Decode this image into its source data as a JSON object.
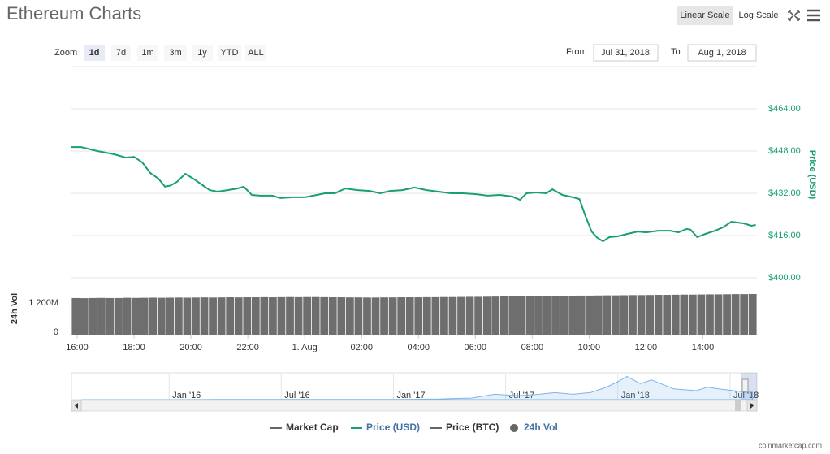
{
  "header": {
    "title": "Ethereum Charts",
    "scale_buttons": [
      "Linear Scale",
      "Log Scale"
    ]
  },
  "zoom": {
    "label": "Zoom",
    "buttons": [
      "1d",
      "7d",
      "1m",
      "3m",
      "1y",
      "YTD",
      "ALL"
    ]
  },
  "range": {
    "from_label": "From",
    "from": "Jul 31, 2018",
    "to_label": "To",
    "to": "Aug 1, 2018"
  },
  "chart_data": [
    {
      "type": "line",
      "ylabel": "Price (USD)",
      "x": [
        -0.2,
        0.14,
        0.71,
        1.29,
        1.71,
        2,
        2.29,
        2.57,
        2.86,
        3.09,
        3.29,
        3.51,
        3.8,
        4.09,
        4.37,
        4.66,
        4.94,
        5.29,
        5.63,
        5.86,
        6.14,
        6.43,
        6.86,
        7.14,
        7.57,
        8,
        8.43,
        8.71,
        9.06,
        9.43,
        9.86,
        10.29,
        10.66,
        11,
        11.43,
        11.86,
        12.29,
        12.71,
        13.14,
        13.57,
        14,
        14.43,
        14.86,
        15.29,
        15.57,
        15.8,
        16.14,
        16.49,
        16.71,
        17.06,
        17.43,
        17.66,
        17.86,
        18.09,
        18.29,
        18.49,
        18.71,
        19,
        19.34,
        19.71,
        20,
        20.43,
        20.86,
        21.14,
        21.43,
        21.57,
        21.8,
        22.09,
        22.43,
        22.71,
        23,
        23.43,
        23.71,
        23.86
      ],
      "series": [
        {
          "color": "#1a9e77",
          "values": [
            449.5,
            449.5,
            448,
            446.8,
            445.5,
            445.8,
            443.7,
            439.7,
            437.5,
            434.5,
            435,
            436.3,
            439.4,
            437.5,
            435.4,
            433.2,
            432.6,
            433.2,
            433.8,
            434.5,
            431.4,
            431.1,
            431.1,
            430.2,
            430.5,
            430.5,
            431.4,
            432,
            432,
            433.8,
            433.2,
            432.9,
            432,
            432.9,
            433.2,
            434.2,
            433.2,
            432.6,
            432,
            432,
            431.7,
            431.1,
            431.4,
            430.8,
            429.5,
            432,
            432.3,
            432,
            433.5,
            431.4,
            430.5,
            429.8,
            423.7,
            417.5,
            415.1,
            413.8,
            415.4,
            415.7,
            416.6,
            417.5,
            417.2,
            417.8,
            417.8,
            417.2,
            418.5,
            418.2,
            415.4,
            416.6,
            417.8,
            419.1,
            421.2,
            420.6,
            419.7,
            420
          ]
        }
      ],
      "xlim": [
        -0.2,
        23.9
      ],
      "xticks": [
        {
          "value": 0,
          "label": "16:00"
        },
        {
          "value": 2,
          "label": "18:00"
        },
        {
          "value": 4,
          "label": "20:00"
        },
        {
          "value": 6,
          "label": "22:00"
        },
        {
          "value": 8,
          "label": "1. Aug"
        },
        {
          "value": 10,
          "label": "02:00"
        },
        {
          "value": 12,
          "label": "04:00"
        },
        {
          "value": 14,
          "label": "06:00"
        },
        {
          "value": 16,
          "label": "08:00"
        },
        {
          "value": 18,
          "label": "10:00"
        },
        {
          "value": 20,
          "label": "12:00"
        },
        {
          "value": 22,
          "label": "14:00"
        }
      ],
      "ylim": [
        400,
        480
      ],
      "yticks": [
        {
          "value": 400,
          "label": "$400.00"
        },
        {
          "value": 416,
          "label": "$416.00"
        },
        {
          "value": 432,
          "label": "$432.00"
        },
        {
          "value": 448,
          "label": "$448.00"
        },
        {
          "value": 464,
          "label": "$464.00"
        }
      ],
      "grid": true
    },
    {
      "type": "bar",
      "ylabel": "24h Vol",
      "series": [
        {
          "color": "#6e6e6e",
          "values": [
            1500,
            1495,
            1500,
            1505,
            1500,
            1500,
            1510,
            1505,
            1510,
            1515,
            1510,
            1515,
            1520,
            1515,
            1520,
            1525,
            1520,
            1525,
            1530,
            1525,
            1530,
            1530,
            1535,
            1530,
            1535,
            1540,
            1535,
            1540,
            1540,
            1535,
            1530,
            1530,
            1525,
            1525,
            1520,
            1520,
            1525,
            1525,
            1530,
            1530,
            1530,
            1535,
            1535,
            1540,
            1540,
            1545,
            1550,
            1550,
            1555,
            1560,
            1565,
            1570,
            1570,
            1575,
            1580,
            1585,
            1590,
            1590,
            1595,
            1600,
            1600,
            1605,
            1610,
            1610,
            1615,
            1620,
            1620,
            1625,
            1630,
            1630,
            1635,
            1640,
            1640,
            1645,
            1650,
            1650,
            1655,
            1660,
            1660,
            1665
          ]
        }
      ],
      "ylim": [
        0,
        2130
      ],
      "yticks": [
        0,
        {
          "value": 1200,
          "label": "1 200M"
        }
      ]
    },
    {
      "type": "area",
      "x": [
        2015.61,
        2016,
        2016.2,
        2016.45,
        2016.6,
        2017,
        2017.2,
        2017.35,
        2017.45,
        2017.55,
        2017.65,
        2017.72,
        2017.8,
        2017.88,
        2017.95,
        2018,
        2018.04,
        2018.1,
        2018.15,
        2018.25,
        2018.35,
        2018.4,
        2018.45,
        2018.55,
        2018.6
      ],
      "series": [
        {
          "color": "#7cb5ec",
          "values": [
            1,
            1,
            10,
            15,
            12,
            8,
            30,
            90,
            300,
            220,
            300,
            390,
            300,
            400,
            700,
            1000,
            1300,
            900,
            1100,
            600,
            500,
            700,
            600,
            450,
            420
          ]
        }
      ],
      "xlim": [
        2015.565,
        2018.62
      ],
      "xticks": [
        {
          "value": 2016,
          "label": "Jan '16"
        },
        {
          "value": 2016.5,
          "label": "Jul '16"
        },
        {
          "value": 2017,
          "label": "Jan '17"
        },
        {
          "value": 2017.5,
          "label": "Jul '17"
        },
        {
          "value": 2018,
          "label": "Jan '18"
        },
        {
          "value": 2018.5,
          "label": "Jul '18"
        }
      ],
      "ylim": [
        0,
        1500
      ]
    }
  ],
  "legend": [
    {
      "name": "Market Cap",
      "color": "#666666"
    },
    {
      "name": "Price (USD)",
      "color": "#1a9e77"
    },
    {
      "name": "Price (BTC)",
      "color": "#666666"
    },
    {
      "name": "24h Vol",
      "color": "#666666"
    }
  ],
  "credit": "coinmarketcap.com"
}
